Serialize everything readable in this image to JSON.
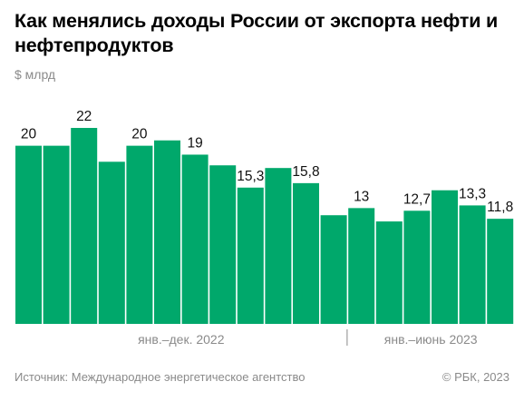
{
  "header": {
    "title": "Как менялись доходы России от экспорта нефти и нефтепродуктов",
    "unit": "$ млрд"
  },
  "footer": {
    "source": "Источник: Международное энергетическое агентство",
    "copyright": "© РБК, 2023"
  },
  "colors": {
    "bar": "#00a86b",
    "divider": "#8a8a8a"
  },
  "chart_data": {
    "type": "bar",
    "title": "Как менялись доходы России от экспорта нефти и нефтепродуктов",
    "ylabel": "$ млрд",
    "ylim": [
      0,
      22
    ],
    "grid": false,
    "values": [
      20,
      20,
      22,
      18.2,
      20,
      20.6,
      19,
      17.8,
      15.3,
      17.5,
      15.8,
      12.2,
      13,
      11.5,
      12.7,
      15,
      13.3,
      11.8
    ],
    "labels": [
      "20",
      "",
      "22",
      "",
      "20",
      "",
      "19",
      "",
      "15,3",
      "",
      "15,8",
      "",
      "13",
      "",
      "12,7",
      "",
      "13,3",
      "11,8"
    ],
    "periods": [
      {
        "label": "янв.–дек. 2022",
        "count": 12
      },
      {
        "label": "янв.–июнь 2023",
        "count": 6
      }
    ]
  }
}
